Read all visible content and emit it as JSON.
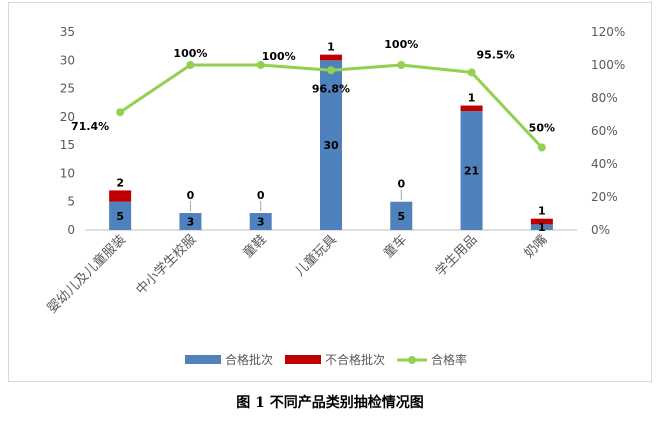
{
  "caption": "图 1 不同产品类别抽检情况图",
  "chart_data": {
    "type": "bar",
    "stacked": true,
    "categories": [
      "婴幼儿及儿童服装",
      "中小学生校服",
      "童鞋",
      "儿童玩具",
      "童车",
      "学生用品",
      "奶嘴"
    ],
    "series": [
      {
        "name": "合格批次",
        "type": "bar",
        "axis": "left",
        "color": "#4f81bd",
        "values": [
          5,
          3,
          3,
          30,
          5,
          21,
          1
        ],
        "labels": [
          "5",
          "3",
          "3",
          "30",
          "5",
          "21",
          "1"
        ]
      },
      {
        "name": "不合格批次",
        "type": "bar",
        "axis": "left",
        "color": "#c00000",
        "values": [
          2,
          0,
          0,
          1,
          0,
          1,
          1
        ],
        "labels": [
          "2",
          "0",
          "0",
          "1",
          "0",
          "1",
          "1"
        ]
      },
      {
        "name": "合格率",
        "type": "line",
        "axis": "right",
        "color": "#92d050",
        "values": [
          71.4,
          100,
          100,
          96.8,
          100,
          95.5,
          50
        ],
        "labels": [
          "71.4%",
          "100%",
          "100%",
          "96.8%",
          "100%",
          "95.5%",
          "50%"
        ]
      }
    ],
    "y_left": {
      "min": 0,
      "max": 35,
      "step": 5,
      "ticks": [
        "0",
        "5",
        "10",
        "15",
        "20",
        "25",
        "30",
        "35"
      ]
    },
    "y_right": {
      "min": 0,
      "max": 120,
      "step": 20,
      "ticks": [
        "0%",
        "20%",
        "40%",
        "60%",
        "80%",
        "100%",
        "120%"
      ]
    },
    "grid": false,
    "legend_position": "bottom"
  }
}
